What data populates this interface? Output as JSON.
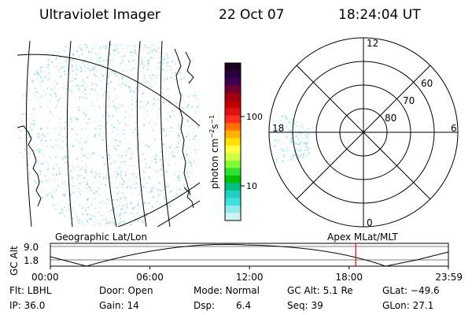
{
  "header": {
    "instrument": "Ultraviolet Imager",
    "date": "22 Oct 07",
    "time": "18:24:04 UT"
  },
  "colorbar": {
    "unit_label": "photon cm",
    "unit_exp1": "−2",
    "unit_mid": "s",
    "unit_exp2": "−1",
    "ticks": [
      "100",
      "10"
    ],
    "colors": [
      "#1a0020",
      "#2a0040",
      "#3b0050",
      "#700030",
      "#a00010",
      "#c00000",
      "#e01010",
      "#ff3020",
      "#ff7000",
      "#ffb000",
      "#ffe000",
      "#ffff40",
      "#d0ff40",
      "#80ff30",
      "#30e030",
      "#00c000",
      "#00c080",
      "#20d0c0",
      "#40e0e0",
      "#90ecec",
      "#d0f4f4"
    ]
  },
  "polar": {
    "lat_labels": [
      "60",
      "70",
      "80"
    ],
    "mlt_labels": {
      "top": "12",
      "bottom": "0",
      "left": "18",
      "right": "6"
    }
  },
  "timeline": {
    "left_title": "Geographic Lat/Lon",
    "right_title": "Apex MLat/MLT",
    "axis_label": "GC Alt",
    "ymax_label": "9.0",
    "ymin_label": "1.8",
    "time_ticks": [
      "00:00",
      "06:00",
      "12:00",
      "18:00",
      "23:59"
    ],
    "marker_color": "#e00000",
    "current_time": "18:24:04"
  },
  "status": {
    "filter": "Flt: LBHL",
    "door": "Door: Open",
    "mode": "Mode: Normal",
    "gc_alt": "GC Alt: 5.1 Re",
    "glat": "GLat: −49.6",
    "ip": "IP: 36.0",
    "gain": "Gain: 14",
    "dsp_label": "Dsp:",
    "dsp_value": "6.4",
    "seq": "Seq: 39",
    "glon": "GLon: 27.1"
  }
}
